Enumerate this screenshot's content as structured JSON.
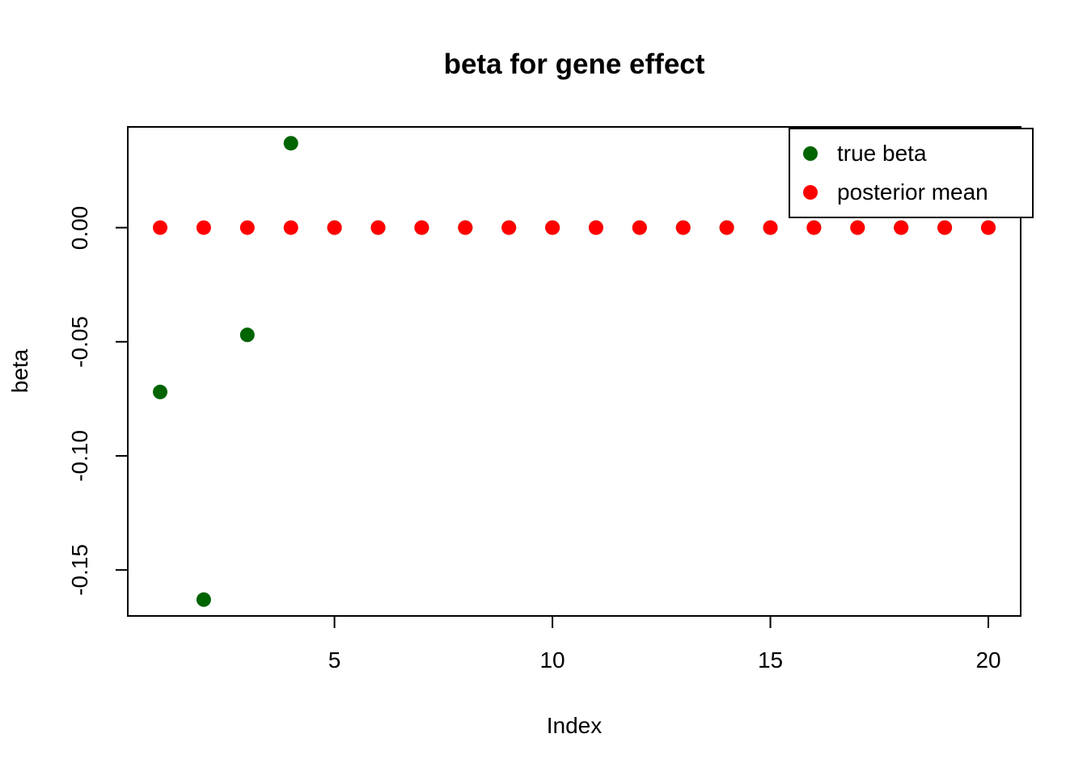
{
  "chart_data": {
    "type": "scatter",
    "title": "beta for gene effect",
    "xlabel": "Index",
    "ylabel": "beta",
    "grid": false,
    "legend_position": "topright",
    "x": [
      1,
      2,
      3,
      4,
      5,
      6,
      7,
      8,
      9,
      10,
      11,
      12,
      13,
      14,
      15,
      16,
      17,
      18,
      19,
      20
    ],
    "series": [
      {
        "name": "true beta",
        "color": "#006400",
        "values": [
          -0.072,
          -0.163,
          -0.047,
          0.037,
          0,
          0,
          0,
          0,
          0,
          0,
          0,
          0,
          0,
          0,
          0,
          0,
          0,
          0,
          0,
          0
        ]
      },
      {
        "name": "posterior mean",
        "color": "#FF0000",
        "values": [
          0,
          0,
          0,
          0,
          0,
          0,
          0,
          0,
          0,
          0,
          0,
          0,
          0,
          0,
          0,
          0,
          0,
          0,
          0,
          0
        ]
      }
    ],
    "x_ticks": [
      5,
      10,
      15,
      20
    ],
    "y_ticks": [
      {
        "value": 0.0,
        "label": "0.00"
      },
      {
        "value": -0.05,
        "label": "-0.05"
      },
      {
        "value": -0.1,
        "label": "-0.10"
      },
      {
        "value": -0.15,
        "label": "-0.15"
      }
    ],
    "xlim": [
      0.24,
      20.76
    ],
    "ylim": [
      -0.1705,
      0.0445
    ]
  }
}
